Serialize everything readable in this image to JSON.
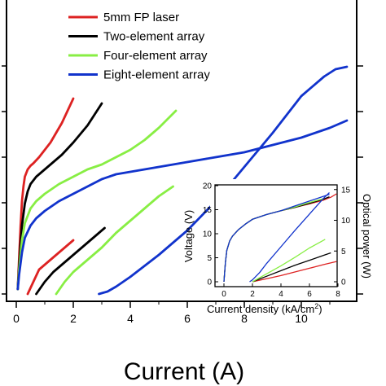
{
  "chart_data": [
    {
      "type": "line",
      "title": "",
      "xlabel": "Current (A)",
      "xlim": [
        -0.3,
        12.5
      ],
      "xticks": [
        0,
        2,
        4,
        6,
        8,
        10
      ],
      "ylim": [
        -5,
        100
      ],
      "grid": false,
      "legend": "top-left",
      "series": [
        {
          "name": "5mm FP laser",
          "color": "#dd2222",
          "axis": "voltage",
          "x": [
            0.05,
            0.1,
            0.15,
            0.2,
            0.25,
            0.3,
            0.4,
            0.5,
            0.6,
            0.8,
            1.0,
            1.2,
            1.4,
            1.6,
            1.8,
            2.0
          ],
          "y": [
            2,
            15,
            28,
            38,
            44,
            48,
            51,
            52.5,
            53.5,
            56,
            59,
            62,
            66,
            70,
            75,
            80
          ]
        },
        {
          "name": "5mm FP laser",
          "color": "#dd2222",
          "axis": "power",
          "x": [
            0.4,
            0.6,
            0.8,
            1.0,
            1.2,
            1.5,
            1.8,
            2.0
          ],
          "y": [
            0,
            5,
            10,
            12,
            14,
            17,
            20,
            22
          ]
        },
        {
          "name": "Two-element array",
          "color": "#000000",
          "axis": "voltage",
          "x": [
            0.05,
            0.1,
            0.2,
            0.3,
            0.4,
            0.5,
            0.7,
            1.0,
            1.3,
            1.6,
            2.0,
            2.5,
            3.0
          ],
          "y": [
            2,
            12,
            28,
            37,
            42,
            45,
            48,
            51,
            54,
            57,
            62,
            69,
            78
          ]
        },
        {
          "name": "Two-element array",
          "color": "#000000",
          "axis": "power",
          "x": [
            0.7,
            1.0,
            1.3,
            1.6,
            2.0,
            2.4,
            2.8,
            3.1
          ],
          "y": [
            0,
            5,
            9,
            12,
            16,
            20,
            24,
            27
          ]
        },
        {
          "name": "Four-element array",
          "color": "#88ee44",
          "axis": "voltage",
          "x": [
            0.05,
            0.1,
            0.2,
            0.3,
            0.5,
            0.7,
            1.0,
            1.5,
            2.0,
            2.5,
            3.0,
            3.5,
            4.0,
            4.5,
            5.0,
            5.6
          ],
          "y": [
            2,
            10,
            22,
            29,
            35,
            38,
            41,
            45,
            48,
            51,
            53,
            56,
            59,
            63,
            68,
            75
          ]
        },
        {
          "name": "Four-element array",
          "color": "#88ee44",
          "axis": "power",
          "x": [
            1.4,
            1.7,
            2.0,
            2.5,
            3.0,
            3.5,
            4.0,
            4.5,
            5.0,
            5.5
          ],
          "y": [
            0,
            5,
            9,
            14,
            19,
            25,
            30,
            35,
            40,
            44
          ]
        },
        {
          "name": "Eight-element array",
          "color": "#1133cc",
          "axis": "voltage",
          "x": [
            0.05,
            0.1,
            0.2,
            0.3,
            0.5,
            0.7,
            1.0,
            1.5,
            2.0,
            2.5,
            3.0,
            3.5,
            4.0,
            5.0,
            6.0,
            7.0,
            8.0,
            9.0,
            10.0,
            11.0,
            11.6
          ],
          "y": [
            2,
            8,
            17,
            23,
            28,
            31,
            34,
            38,
            41,
            44,
            47,
            49,
            50,
            52,
            54,
            56,
            58,
            61,
            64,
            68,
            71
          ]
        },
        {
          "name": "Eight-element array",
          "color": "#1133cc",
          "axis": "power",
          "x": [
            2.9,
            3.2,
            3.5,
            4.0,
            5.0,
            6.0,
            7.0,
            8.0,
            9.0,
            10.0,
            10.8,
            11.2,
            11.6
          ],
          "y": [
            0,
            1,
            3,
            7,
            16,
            26,
            38,
            52,
            66,
            81,
            89,
            92,
            93
          ]
        }
      ]
    },
    {
      "type": "line",
      "title": "",
      "xlabel": "Current density (kA/cm",
      "xlabel_sup": "2",
      "xlabel_end": ")",
      "ylabel": "Voltage (V)",
      "ylabel_right": "Optical power (W)",
      "xlim": [
        -0.4,
        8.8
      ],
      "xticks": [
        0,
        2,
        4,
        6,
        8
      ],
      "ylim": [
        -1,
        21
      ],
      "yticks": [
        0,
        5,
        10,
        15,
        20
      ],
      "ylim_right": [
        -1,
        15.4
      ],
      "yticks_right": [
        0,
        5,
        10,
        15
      ],
      "legend": "none",
      "series": [
        {
          "name": "5mm FP laser",
          "color": "#dd2222",
          "axis": "voltage",
          "x": [
            0,
            0.05,
            0.1,
            0.2,
            0.4,
            0.6,
            1.0,
            1.5,
            2.0,
            3.0,
            4.0,
            5.0,
            6.0,
            7.0,
            7.5,
            7.9
          ],
          "y": [
            0,
            2,
            4,
            6.5,
            8.5,
            9.5,
            10.8,
            12,
            13,
            14,
            14.8,
            15.5,
            16.2,
            17,
            17.6,
            18.3
          ]
        },
        {
          "name": "5mm FP laser",
          "color": "#dd2222",
          "axis": "power",
          "x": [
            2.0,
            3.0,
            4.0,
            5.0,
            6.0,
            7.0,
            7.9
          ],
          "y": [
            0,
            0.5,
            1,
            1.6,
            2.2,
            2.8,
            3.3
          ]
        },
        {
          "name": "Two-element array",
          "color": "#000000",
          "axis": "voltage",
          "x": [
            0,
            0.05,
            0.1,
            0.2,
            0.4,
            0.6,
            1.0,
            1.5,
            2.0,
            3.0,
            4.0,
            5.0,
            6.0,
            7.0,
            7.4
          ],
          "y": [
            0,
            2,
            4,
            6.5,
            8.5,
            9.5,
            10.8,
            12,
            13,
            14,
            14.8,
            15.5,
            16.3,
            17.2,
            17.7
          ]
        },
        {
          "name": "Two-element array",
          "color": "#000000",
          "axis": "power",
          "x": [
            2.0,
            3.0,
            4.0,
            5.0,
            6.0,
            7.0,
            7.5
          ],
          "y": [
            0,
            0.9,
            1.8,
            2.7,
            3.5,
            4.3,
            4.7
          ]
        },
        {
          "name": "Four-element array",
          "color": "#88ee44",
          "axis": "voltage",
          "x": [
            0,
            0.05,
            0.1,
            0.2,
            0.4,
            0.6,
            1.0,
            1.5,
            2.0,
            3.0,
            4.0,
            5.0,
            6.0,
            7.0
          ],
          "y": [
            0,
            2,
            4,
            6.5,
            8.5,
            9.5,
            10.8,
            12,
            13,
            14,
            14.8,
            15.6,
            16.5,
            17.3
          ]
        },
        {
          "name": "Four-element array",
          "color": "#88ee44",
          "axis": "power",
          "x": [
            2.0,
            3.0,
            4.0,
            5.0,
            6.0,
            7.1
          ],
          "y": [
            0,
            1.3,
            2.6,
            4,
            5.5,
            6.9
          ]
        },
        {
          "name": "Eight-element array",
          "color": "#1133cc",
          "axis": "voltage",
          "x": [
            0,
            0.05,
            0.1,
            0.2,
            0.4,
            0.6,
            1.0,
            1.5,
            2.0,
            3.0,
            4.0,
            5.0,
            6.0,
            7.0,
            7.4
          ],
          "y": [
            0,
            2,
            4,
            6.5,
            8.5,
            9.5,
            10.8,
            12,
            13,
            14,
            14.8,
            15.8,
            16.8,
            17.8,
            18.2
          ]
        },
        {
          "name": "Eight-element array",
          "color": "#1133cc",
          "axis": "power",
          "x": [
            1.8,
            2.0,
            2.5,
            3.0,
            4.0,
            5.0,
            6.0,
            7.0,
            7.4
          ],
          "y": [
            0,
            0.3,
            1.5,
            3,
            5.7,
            8.4,
            11,
            13.6,
            14.5
          ]
        }
      ]
    }
  ]
}
